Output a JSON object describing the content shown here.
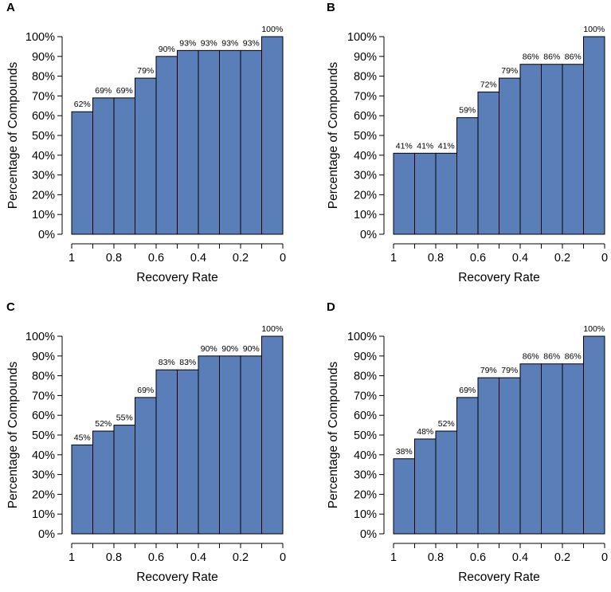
{
  "colors": {
    "bar": "#5a7fb8",
    "bar_edge": "#000000",
    "axis": "#000000"
  },
  "chart_data": [
    {
      "panel": "A",
      "type": "bar",
      "xlabel": "Recovery Rate",
      "ylabel": "Percentage of Compounds",
      "ylim": [
        0,
        100
      ],
      "grid": false,
      "bin_edges": [
        1,
        0.9,
        0.8,
        0.7,
        0.6,
        0.5,
        0.4,
        0.3,
        0.2,
        0.1,
        0
      ],
      "x_ticks": [
        "1",
        "0.8",
        "0.6",
        "0.4",
        "0.2",
        "0"
      ],
      "y_ticks": [
        "0%",
        "10%",
        "20%",
        "30%",
        "40%",
        "50%",
        "60%",
        "70%",
        "80%",
        "90%",
        "100%"
      ],
      "values": [
        62,
        69,
        69,
        79,
        90,
        93,
        93,
        93,
        93,
        100
      ],
      "labels": [
        "62%",
        "69%",
        "69%",
        "79%",
        "90%",
        "93%",
        "93%",
        "93%",
        "93%",
        "100%"
      ]
    },
    {
      "panel": "B",
      "type": "bar",
      "xlabel": "Recovery Rate",
      "ylabel": "Percentage of Compounds",
      "ylim": [
        0,
        100
      ],
      "grid": false,
      "bin_edges": [
        1,
        0.9,
        0.8,
        0.7,
        0.6,
        0.5,
        0.4,
        0.3,
        0.2,
        0.1,
        0
      ],
      "x_ticks": [
        "1",
        "0.8",
        "0.6",
        "0.4",
        "0.2",
        "0"
      ],
      "y_ticks": [
        "0%",
        "10%",
        "20%",
        "30%",
        "40%",
        "50%",
        "60%",
        "70%",
        "80%",
        "90%",
        "100%"
      ],
      "values": [
        41,
        41,
        41,
        59,
        72,
        79,
        86,
        86,
        86,
        100
      ],
      "labels": [
        "41%",
        "41%",
        "41%",
        "59%",
        "72%",
        "79%",
        "86%",
        "86%",
        "86%",
        "100%"
      ]
    },
    {
      "panel": "C",
      "type": "bar",
      "xlabel": "Recovery Rate",
      "ylabel": "Percentage of Compounds",
      "ylim": [
        0,
        100
      ],
      "grid": false,
      "bin_edges": [
        1,
        0.9,
        0.8,
        0.7,
        0.6,
        0.5,
        0.4,
        0.3,
        0.2,
        0.1,
        0
      ],
      "x_ticks": [
        "1",
        "0.8",
        "0.6",
        "0.4",
        "0.2",
        "0"
      ],
      "y_ticks": [
        "0%",
        "10%",
        "20%",
        "30%",
        "40%",
        "50%",
        "60%",
        "70%",
        "80%",
        "90%",
        "100%"
      ],
      "values": [
        45,
        52,
        55,
        69,
        83,
        83,
        90,
        90,
        90,
        100
      ],
      "labels": [
        "45%",
        "52%",
        "55%",
        "69%",
        "83%",
        "83%",
        "90%",
        "90%",
        "90%",
        "100%"
      ]
    },
    {
      "panel": "D",
      "type": "bar",
      "xlabel": "Recovery Rate",
      "ylabel": "Percentage of Compounds",
      "ylim": [
        0,
        100
      ],
      "grid": false,
      "bin_edges": [
        1,
        0.9,
        0.8,
        0.7,
        0.6,
        0.5,
        0.4,
        0.3,
        0.2,
        0.1,
        0
      ],
      "x_ticks": [
        "1",
        "0.8",
        "0.6",
        "0.4",
        "0.2",
        "0"
      ],
      "y_ticks": [
        "0%",
        "10%",
        "20%",
        "30%",
        "40%",
        "50%",
        "60%",
        "70%",
        "80%",
        "90%",
        "100%"
      ],
      "values": [
        38,
        48,
        52,
        69,
        79,
        79,
        86,
        86,
        86,
        100
      ],
      "labels": [
        "38%",
        "48%",
        "52%",
        "69%",
        "79%",
        "79%",
        "86%",
        "86%",
        "86%",
        "100%"
      ]
    }
  ]
}
